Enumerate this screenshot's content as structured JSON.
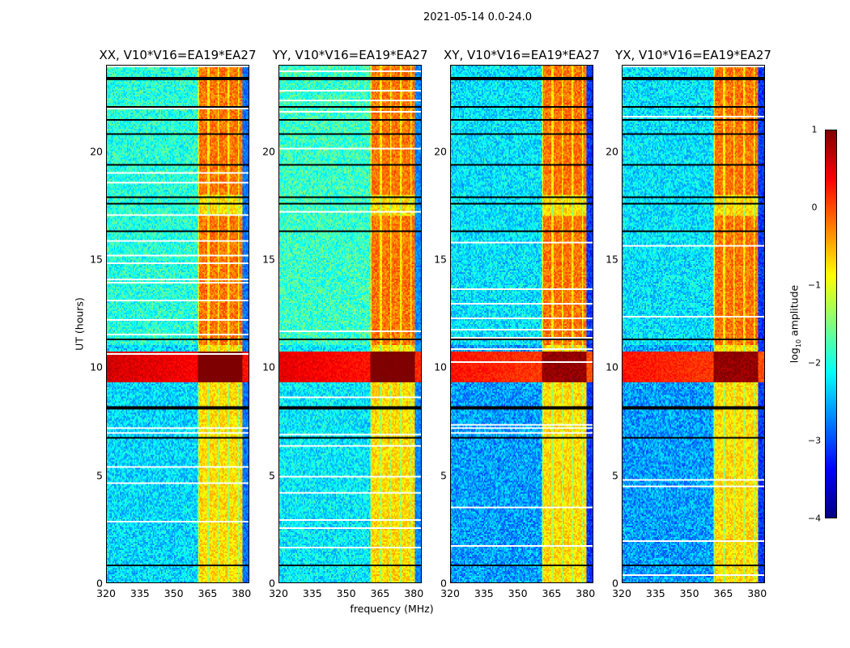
{
  "chart_data": {
    "type": "heatmap",
    "title": "2021-05-14 0.0-24.0",
    "xlabel": "frequency (MHz)",
    "ylabel": "UT (hours)",
    "xlim": [
      320,
      383.5
    ],
    "ylim": [
      0,
      24
    ],
    "xticks": [
      "320",
      "335",
      "350",
      "365",
      "380"
    ],
    "xtick_values": [
      320,
      335,
      350,
      365,
      380
    ],
    "yticks": [
      "0",
      "5",
      "10",
      "15",
      "20"
    ],
    "ytick_values": [
      0,
      5,
      10,
      15,
      20
    ],
    "panels": [
      {
        "title": "XX, V10*V16=EA19*EA27",
        "base_level": -2.3,
        "event_level": 0.6
      },
      {
        "title": "YY, V10*V16=EA19*EA27",
        "base_level": -2.2,
        "event_level": 0.5
      },
      {
        "title": "XY, V10*V16=EA19*EA27",
        "base_level": -2.6,
        "event_level": 0.3
      },
      {
        "title": "YX, V10*V16=EA19*EA27",
        "base_level": -2.6,
        "event_level": 0.3
      }
    ],
    "rfi_band_mhz": [
      360.5,
      381
    ],
    "event_ut_hours": [
      9.3,
      10.7
    ],
    "flagged_ut_hours": [
      0.8,
      6.7,
      8.1,
      11.3,
      16.3,
      17.6,
      17.9,
      19.4,
      20.8,
      21.5,
      22.1,
      23.4
    ],
    "colorbar": {
      "label": "log10 amplitude",
      "label_main": "log",
      "label_sub": "10",
      "label_rest": " amplitude",
      "range": [
        -4,
        1
      ],
      "ticks": [
        "1",
        "0",
        "−1",
        "−2",
        "−3",
        "−4"
      ],
      "tick_values": [
        1,
        0,
        -1,
        -2,
        -3,
        -4
      ],
      "colormap": "jet"
    }
  }
}
